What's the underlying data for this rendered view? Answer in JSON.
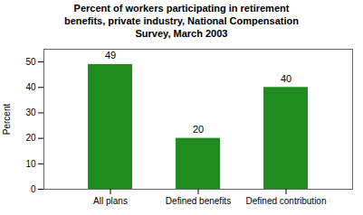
{
  "chart_data": {
    "type": "bar",
    "title": "Percent of workers participating in retirement\nbenefits, private industry, National Compensation\nSurvey, March 2003",
    "ylabel": "Percent",
    "categories": [
      "All plans",
      "Defined benefits",
      "Defined contribution"
    ],
    "values": [
      49,
      20,
      40
    ],
    "color": "#1f8c1f",
    "ylim": [
      0,
      55
    ],
    "yticks": [
      0,
      10,
      20,
      30,
      40,
      50
    ],
    "grid": false,
    "data_labels": true
  }
}
